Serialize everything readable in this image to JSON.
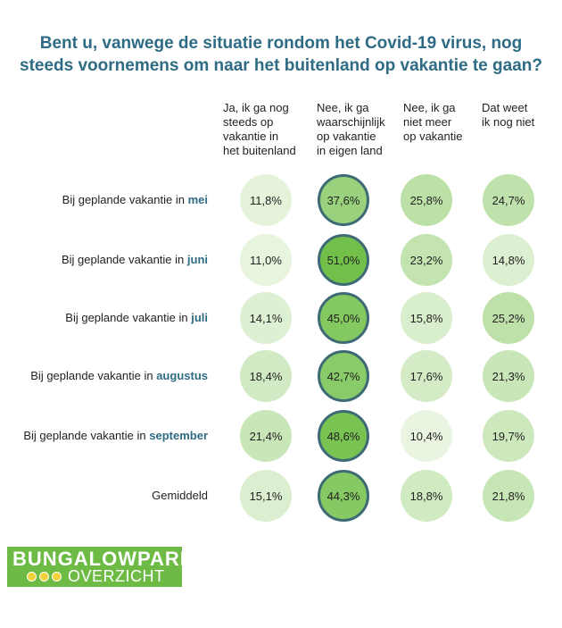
{
  "title_lines": [
    "Bent u, vanwege de situatie rondom het Covid-19 virus, nog",
    "steeds voornemens om naar het buitenland op vakantie te gaan?"
  ],
  "chart_data": {
    "type": "table",
    "title": "Bent u, vanwege de situatie rondom het Covid-19 virus, nog steeds voornemens om naar het buitenland op vakantie te gaan?",
    "columns": [
      [
        "Ja, ik ga nog",
        "steeds op",
        "vakantie in",
        "het buitenland"
      ],
      [
        "Nee, ik ga",
        "waarschijnlijk",
        "op vakantie",
        "in eigen land"
      ],
      [
        "Nee, ik ga",
        "niet meer",
        "op vakantie"
      ],
      [
        "Dat weet",
        "ik nog niet"
      ]
    ],
    "rows": [
      {
        "prefix": "Bij geplande vakantie in ",
        "month": "mei",
        "values": [
          11.8,
          37.6,
          25.8,
          24.7
        ],
        "labels": [
          "11,8%",
          "37,6%",
          "25,8%",
          "24,7%"
        ]
      },
      {
        "prefix": "Bij geplande vakantie in ",
        "month": "juni",
        "values": [
          11.0,
          51.0,
          23.2,
          14.8
        ],
        "labels": [
          "11,0%",
          "51,0%",
          "23,2%",
          "14,8%"
        ]
      },
      {
        "prefix": "Bij geplande vakantie in ",
        "month": "juli",
        "values": [
          14.1,
          45.0,
          15.8,
          25.2
        ],
        "labels": [
          "14,1%",
          "45,0%",
          "15,8%",
          "25,2%"
        ]
      },
      {
        "prefix": "Bij geplande vakantie in ",
        "month": "augustus",
        "values": [
          18.4,
          42.7,
          17.6,
          21.3
        ],
        "labels": [
          "18,4%",
          "42,7%",
          "17,6%",
          "21,3%"
        ]
      },
      {
        "prefix": "Bij geplande vakantie in ",
        "month": "september",
        "values": [
          21.4,
          48.6,
          10.4,
          19.7
        ],
        "labels": [
          "21,4%",
          "48,6%",
          "10,4%",
          "19,7%"
        ]
      },
      {
        "prefix": "",
        "month": "",
        "label": "Gemiddeld",
        "values": [
          15.1,
          44.3,
          18.8,
          21.8
        ],
        "labels": [
          "15,1%",
          "44,3%",
          "18,8%",
          "21,8%"
        ]
      }
    ],
    "highlight_column": 1,
    "colors": {
      "low": "#eaf5e2",
      "high": "#72c04a",
      "ring": "#3d6a74"
    }
  },
  "logo": {
    "line1": "BUNGALOWPARK",
    "line2": "OVERZICHT"
  }
}
